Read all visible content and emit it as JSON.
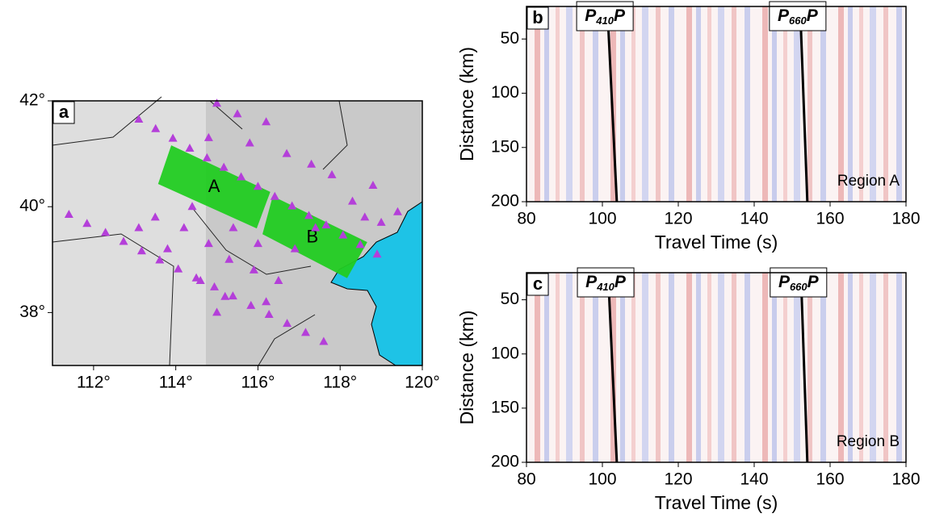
{
  "chart_data": [
    {
      "type": "map",
      "panel": "a",
      "xlim": [
        111,
        120
      ],
      "ylim": [
        37,
        42
      ],
      "xticks": [
        {
          "value": 112,
          "label": "112°"
        },
        {
          "value": 114,
          "label": "114°"
        },
        {
          "value": 116,
          "label": "116°"
        },
        {
          "value": 118,
          "label": "118°"
        },
        {
          "value": 120,
          "label": "120°"
        }
      ],
      "yticks": [
        {
          "value": 38,
          "label": "38°"
        },
        {
          "value": 40,
          "label": "40°"
        },
        {
          "value": 42,
          "label": "42°"
        }
      ],
      "stations": {
        "color": "#b43fd9",
        "x": [
          113.1,
          113.51,
          113.93,
          114.34,
          114.76,
          115.17,
          115.59,
          116.0,
          116.41,
          116.83,
          117.24,
          117.66,
          118.07,
          118.49,
          118.9,
          111.4,
          111.84,
          112.29,
          112.73,
          113.17,
          113.61,
          114.06,
          114.5,
          114.94,
          115.39,
          115.83,
          116.27,
          116.71,
          117.16,
          117.6,
          115.0,
          115.5,
          116.2,
          114.8,
          115.8,
          116.7,
          117.3,
          117.8,
          118.3,
          118.6,
          119.0,
          118.8,
          113.5,
          114.2,
          114.8,
          115.3,
          115.9,
          116.5,
          116.0,
          115.4,
          113.8,
          114.6,
          115.2,
          116.2,
          113.1,
          114.4,
          117.4,
          116.9,
          119.4,
          115.0
        ],
        "y": [
          41.65,
          41.47,
          41.29,
          41.1,
          40.92,
          40.74,
          40.56,
          40.38,
          40.19,
          40.01,
          39.83,
          39.65,
          39.46,
          39.28,
          39.1,
          39.85,
          39.68,
          39.51,
          39.34,
          39.16,
          38.99,
          38.82,
          38.65,
          38.48,
          38.31,
          38.13,
          37.96,
          37.79,
          37.62,
          37.45,
          41.95,
          41.75,
          41.6,
          41.3,
          41.2,
          41.0,
          40.8,
          40.6,
          40.1,
          39.8,
          39.7,
          40.4,
          39.8,
          39.6,
          39.3,
          39.0,
          38.8,
          38.6,
          39.3,
          39.6,
          39.2,
          38.6,
          38.3,
          38.2,
          39.6,
          40.0,
          39.6,
          39.2,
          39.9,
          38.0
        ]
      },
      "regions": [
        {
          "label": "A",
          "color": "#22cc22",
          "x": [
            113.89,
            116.3,
            115.97,
            113.57
          ],
          "y": [
            41.16,
            40.28,
            39.59,
            40.43
          ]
        },
        {
          "label": "B",
          "color": "#22cc22",
          "x": [
            116.36,
            118.66,
            118.17,
            116.11
          ],
          "y": [
            40.2,
            39.33,
            38.65,
            39.48
          ]
        }
      ]
    },
    {
      "type": "section",
      "panel": "b",
      "xlabel": "Travel Time (s)",
      "ylabel": "Distance (km)",
      "xlim": [
        80,
        180
      ],
      "ylim": [
        200,
        20
      ],
      "xticks": [
        80,
        100,
        120,
        140,
        160,
        180
      ],
      "yticks": [
        50,
        100,
        150,
        200
      ],
      "series": [
        {
          "label_parts": [
            "P",
            "410",
            "P"
          ],
          "color": "#000000",
          "x": [
            101.3,
            103.8
          ],
          "values": [
            20,
            200
          ]
        },
        {
          "label_parts": [
            "P",
            "660",
            "P"
          ],
          "color": "#000000",
          "x": [
            152.1,
            154.0
          ],
          "values": [
            20,
            200
          ]
        }
      ],
      "note": "Region A"
    },
    {
      "type": "section",
      "panel": "c",
      "xlabel": "Travel Time (s)",
      "ylabel": "Distance (km)",
      "xlim": [
        80,
        180
      ],
      "ylim": [
        200,
        25
      ],
      "xticks": [
        80,
        100,
        120,
        140,
        160,
        180
      ],
      "yticks": [
        50,
        100,
        150,
        200
      ],
      "series": [
        {
          "label_parts": [
            "P",
            "410",
            "P"
          ],
          "color": "#000000",
          "x": [
            101.5,
            103.8
          ],
          "values": [
            25,
            200
          ]
        },
        {
          "label_parts": [
            "P",
            "660",
            "P"
          ],
          "color": "#000000",
          "x": [
            152.3,
            154.0
          ],
          "values": [
            25,
            200
          ]
        }
      ],
      "note": "Region B"
    }
  ]
}
